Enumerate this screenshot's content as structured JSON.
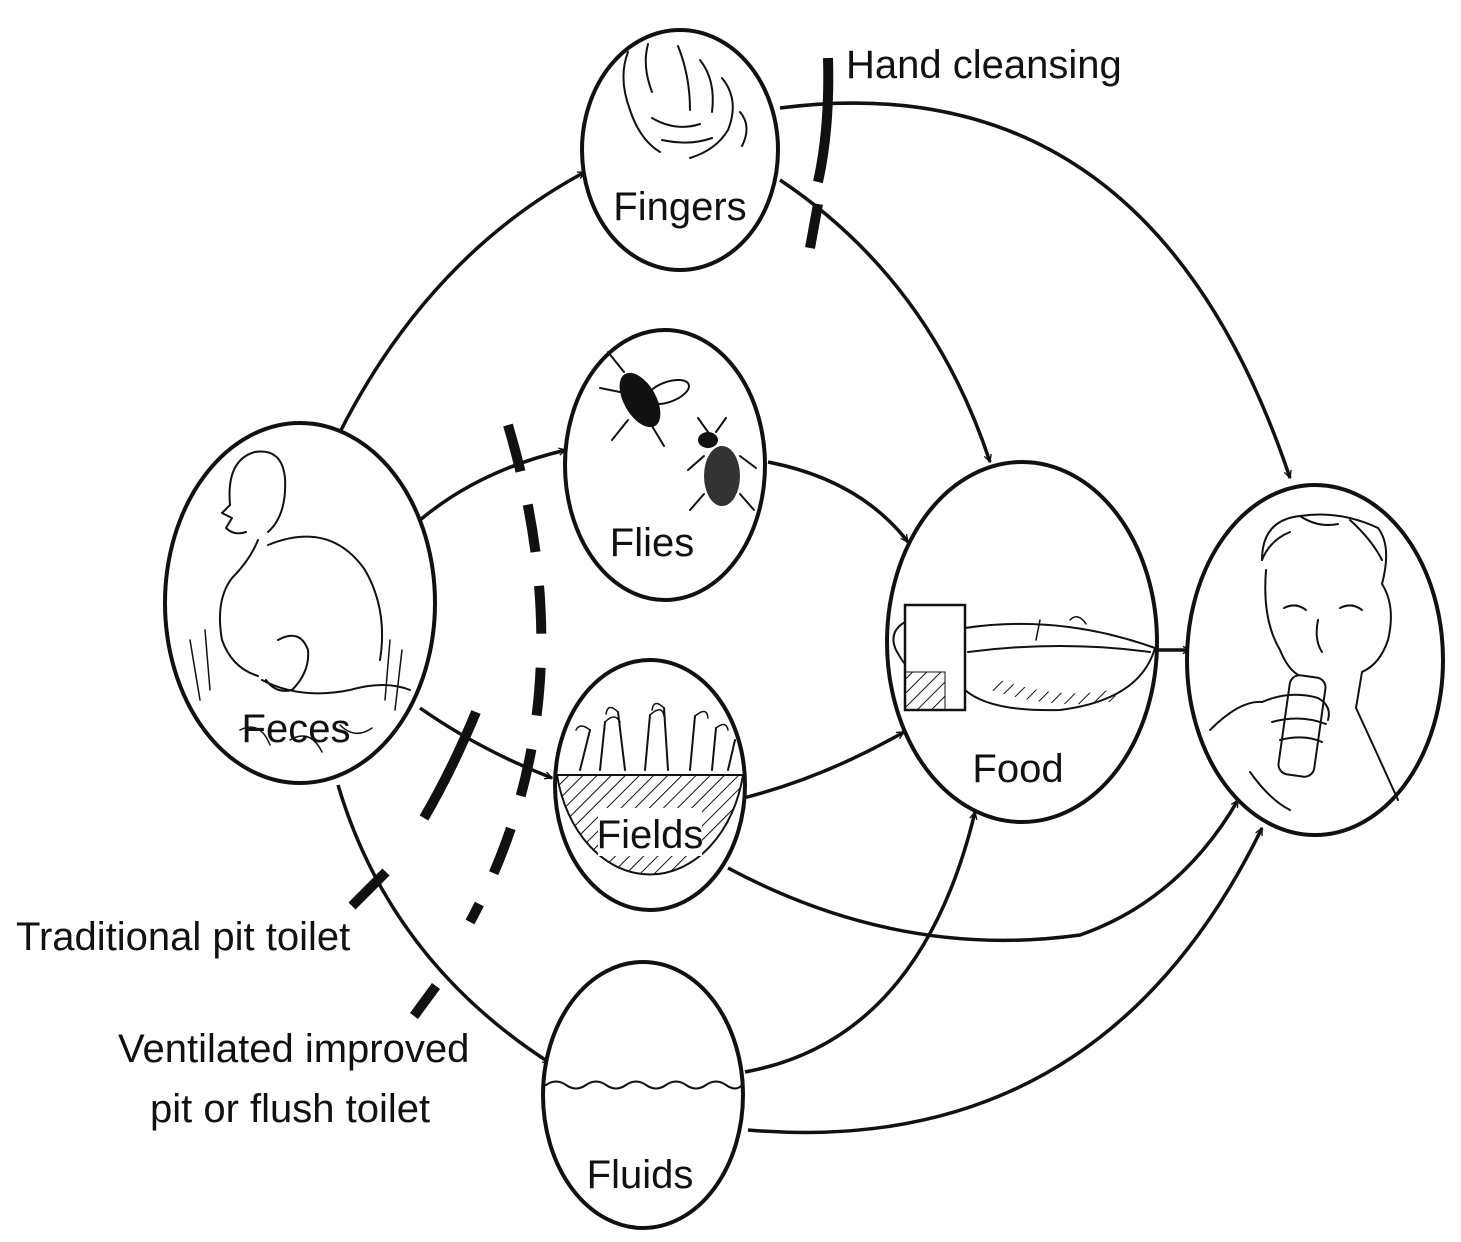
{
  "nodes": {
    "feces": "Feces",
    "fingers": "Fingers",
    "flies": "Flies",
    "fields": "Fields",
    "fluids": "Fluids",
    "food": "Food"
  },
  "barriers": {
    "hand_cleansing": "Hand cleansing",
    "traditional_pit_toilet": "Traditional pit toilet",
    "ventilated_line1": "Ventilated improved",
    "ventilated_line2": "pit or flush toilet"
  },
  "icons": {
    "feces": "person-squatting-icon",
    "fingers": "hand-icon",
    "flies": "fly-icon",
    "fields": "field-crops-icon",
    "fluids": "water-wave-icon",
    "food": "food-bowl-cup-icon",
    "host": "person-eating-icon"
  }
}
